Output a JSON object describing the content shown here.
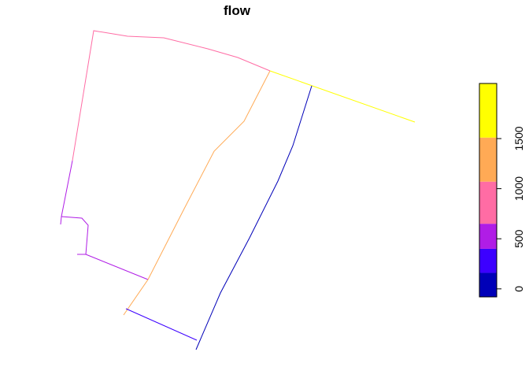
{
  "chart_data": {
    "type": "line",
    "title": "flow",
    "legend": {
      "placement": "right",
      "type": "color-bar",
      "range": [
        -80,
        2050
      ],
      "bins": [
        {
          "from": -80,
          "to": 160,
          "color": "#0000B8"
        },
        {
          "from": 160,
          "to": 400,
          "color": "#3C00FF"
        },
        {
          "from": 400,
          "to": 650,
          "color": "#B01DE6"
        },
        {
          "from": 650,
          "to": 1070,
          "color": "#FF6CA4"
        },
        {
          "from": 1070,
          "to": 1510,
          "color": "#FFAA55"
        },
        {
          "from": 1510,
          "to": 2050,
          "color": "#FFFF00"
        }
      ],
      "ticks": [
        {
          "value": 0,
          "label": "0"
        },
        {
          "value": 500,
          "label": "500"
        },
        {
          "value": 1000,
          "label": "1000"
        },
        {
          "value": 1500,
          "label": "1500"
        }
      ]
    },
    "series": [
      {
        "color": "#FF6CA4",
        "path": [
          [
            92,
            204
          ],
          [
            119,
            39
          ],
          [
            162,
            46
          ],
          [
            208,
            48
          ],
          [
            264,
            62
          ],
          [
            302,
            73
          ],
          [
            343,
            90
          ]
        ]
      },
      {
        "color": "#B01DE6",
        "path": [
          [
            92,
            204
          ],
          [
            78,
            275
          ],
          [
            77,
            285
          ]
        ]
      },
      {
        "color": "#B01DE6",
        "path": [
          [
            78,
            275
          ],
          [
            104,
            277
          ],
          [
            112,
            286
          ],
          [
            109,
            323
          ],
          [
            98,
            323
          ]
        ]
      },
      {
        "color": "#B01DE6",
        "path": [
          [
            109,
            323
          ],
          [
            188,
            355
          ]
        ]
      },
      {
        "color": "#FFAA55",
        "path": [
          [
            343,
            90
          ],
          [
            310,
            154
          ],
          [
            272,
            192
          ],
          [
            234,
            265
          ],
          [
            188,
            355
          ],
          [
            157,
            400
          ]
        ]
      },
      {
        "color": "#FFFF00",
        "path": [
          [
            343,
            90
          ],
          [
            527,
            155
          ]
        ]
      },
      {
        "color": "#0000B8",
        "path": [
          [
            396,
            109
          ],
          [
            372,
            185
          ],
          [
            353,
            230
          ],
          [
            317,
            302
          ],
          [
            280,
            372
          ],
          [
            249,
            444
          ]
        ]
      },
      {
        "color": "#3C00FF",
        "path": [
          [
            160,
            392
          ],
          [
            250,
            432
          ]
        ]
      }
    ]
  }
}
